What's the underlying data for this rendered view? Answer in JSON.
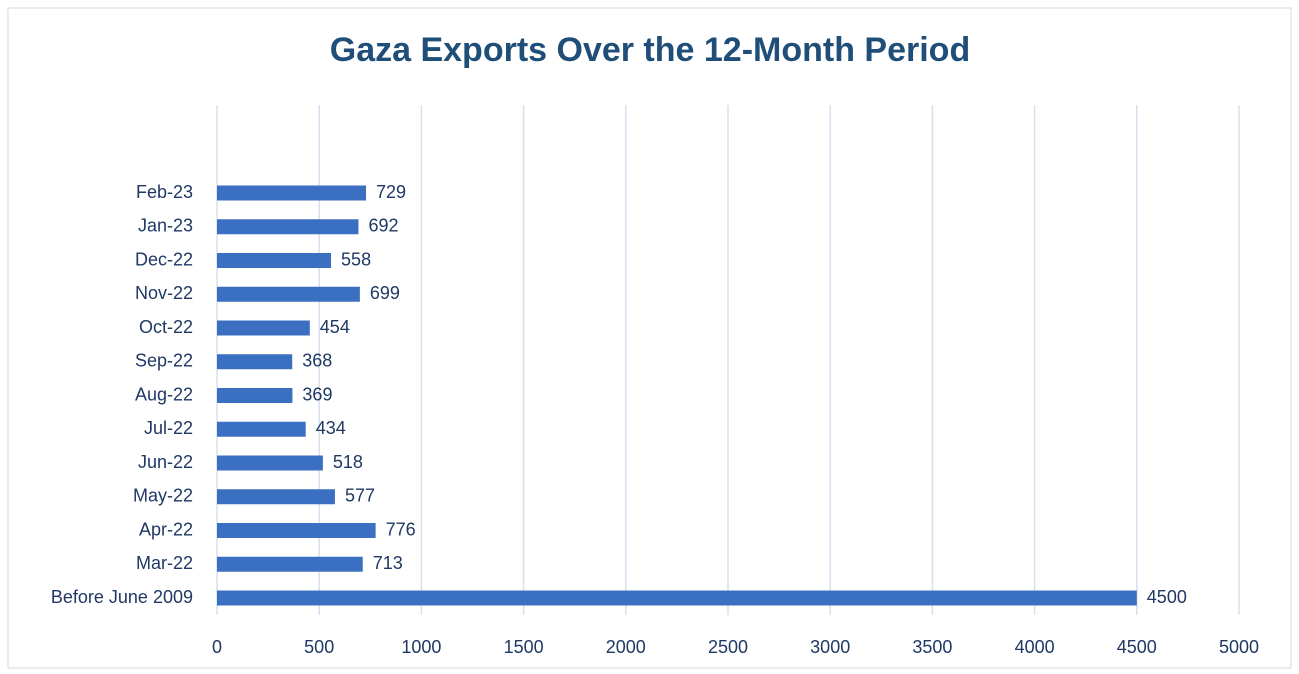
{
  "chart_data": {
    "type": "bar",
    "orientation": "horizontal",
    "title": "Gaza Exports Over the 12-Month Period",
    "categories": [
      "Before June 2009",
      "Mar-22",
      "Apr-22",
      "May-22",
      "Jun-22",
      "Jul-22",
      "Aug-22",
      "Sep-22",
      "Oct-22",
      "Nov-22",
      "Dec-22",
      "Jan-23",
      "Feb-23"
    ],
    "values": [
      4500,
      713,
      776,
      577,
      518,
      434,
      369,
      368,
      454,
      699,
      558,
      692,
      729
    ],
    "color": "#3b6fc1",
    "xlim": [
      0,
      5000
    ],
    "xticks": [
      0,
      500,
      1000,
      1500,
      2000,
      2500,
      3000,
      3500,
      4000,
      4500,
      5000
    ],
    "grid": true
  }
}
